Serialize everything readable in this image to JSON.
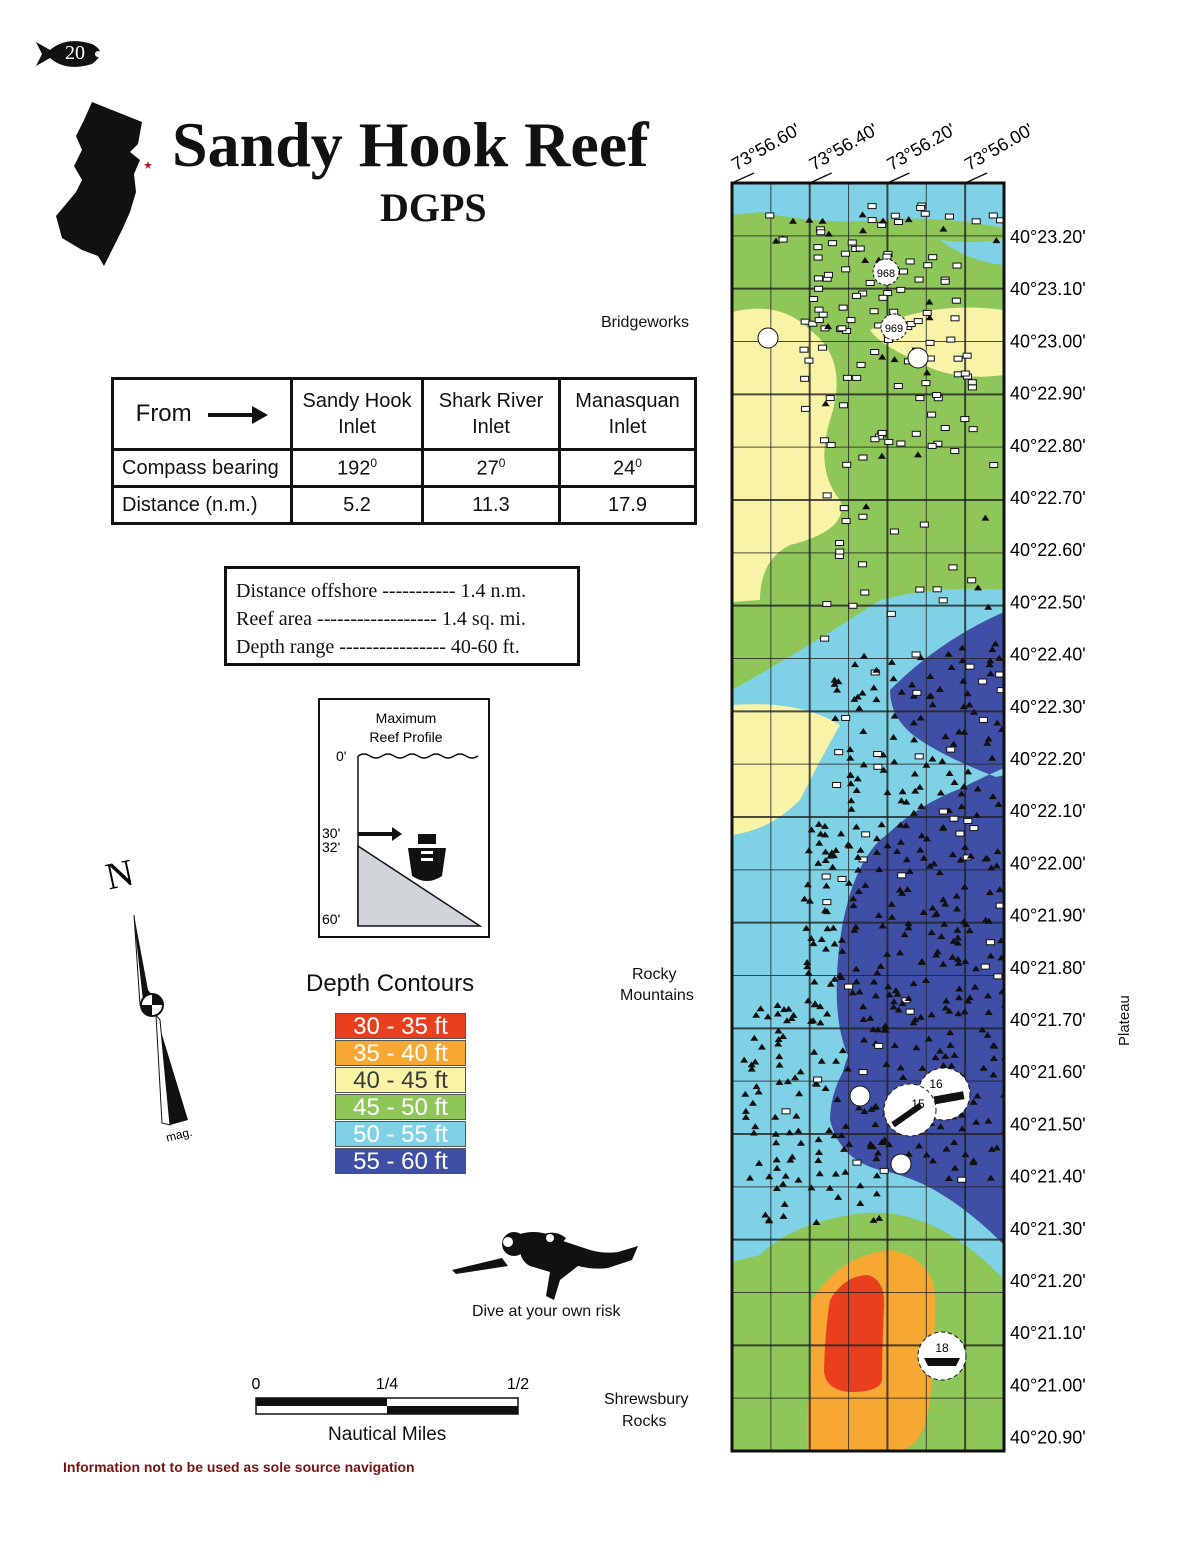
{
  "page": {
    "number": "20",
    "title": "Sandy Hook Reef",
    "subtitle": "DGPS",
    "disclaimer": "Information not to be used as sole source navigation"
  },
  "inlet_table": {
    "from_label": "From",
    "columns": [
      "Sandy Hook Inlet",
      "Shark River Inlet",
      "Manasquan Inlet"
    ],
    "rows": [
      {
        "label": "Compass bearing",
        "values": [
          "192",
          "27",
          "24"
        ],
        "unit": "0"
      },
      {
        "label": "Distance  (n.m.)",
        "values": [
          "5.2",
          "11.3",
          "17.9"
        ]
      }
    ]
  },
  "reef_stats": [
    "Distance offshore ----------- 1.4 n.m.",
    "Reef area ------------------ 1.4 sq. mi.",
    "Depth range ---------------- 40-60 ft."
  ],
  "reef_profile": {
    "title_line1": "Maximum",
    "title_line2": "Reef Profile",
    "depth_0": "0'",
    "depth_30": "30'",
    "depth_32": "32'",
    "depth_60": "60'"
  },
  "depth_contours": {
    "title": "Depth Contours",
    "items": [
      {
        "label": "30 - 35 ft",
        "color": "#e8401e"
      },
      {
        "label": "35 - 40 ft",
        "color": "#f6a833"
      },
      {
        "label": "40 - 45 ft",
        "color": "#f8f3a6"
      },
      {
        "label": "45 - 50 ft",
        "color": "#8fc65a"
      },
      {
        "label": "50 - 55 ft",
        "color": "#7fd2e6"
      },
      {
        "label": "55 - 60 ft",
        "color": "#3f4fa6"
      }
    ]
  },
  "compass": {
    "north_label": "N",
    "mag_label": "mag."
  },
  "diver_caption": "Dive at your own risk",
  "scale_bar": {
    "ticks": [
      "0",
      "1/4",
      "1/2"
    ],
    "caption": "Nautical Miles"
  },
  "landmarks": {
    "bridgeworks": "Bridgeworks",
    "rocky_mountains_1": "Rocky",
    "rocky_mountains_2": "Mountains",
    "shrewsbury_1": "Shrewsbury",
    "shrewsbury_2": "Rocks",
    "plateau": "Plateau"
  },
  "longitudes": [
    "73°56.60'",
    "73°56.40'",
    "73°56.20'",
    "73°56.00'"
  ],
  "latitudes": [
    "40°23.20'",
    "40°23.10'",
    "40°23.00'",
    "40°22.90'",
    "40°22.80'",
    "40°22.70'",
    "40°22.60'",
    "40°22.50'",
    "40°22.40'",
    "40°22.30'",
    "40°22.20'",
    "40°22.10'",
    "40°22.00'",
    "40°21.90'",
    "40°21.80'",
    "40°21.70'",
    "40°21.60'",
    "40°21.50'",
    "40°21.40'",
    "40°21.30'",
    "40°21.20'",
    "40°21.10'",
    "40°21.00'",
    "40°20.90'"
  ],
  "wreck_markers": [
    "968",
    "969",
    "16",
    "15",
    "18"
  ]
}
